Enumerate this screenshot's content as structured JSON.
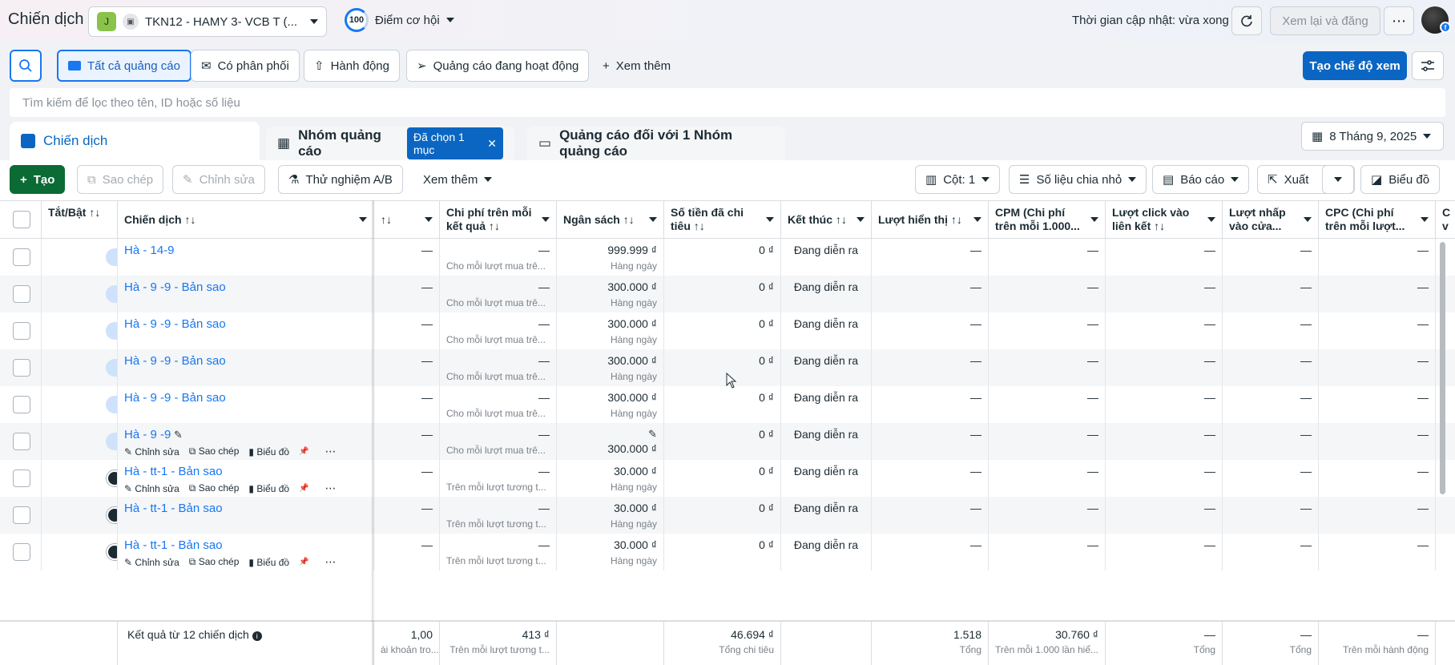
{
  "header": {
    "title": "Chiến dịch",
    "account_badge": "J",
    "account_name": "TKN12 - HAMY 3- VCB T (...",
    "score_value": "100",
    "score_label": "Điểm cơ hội",
    "update_text": "Thời gian cập nhật: vừa xong",
    "review_label": "Xem lại và đăng"
  },
  "filters": {
    "all_ads": "Tất cả quảng cáo",
    "has_delivery": "Có phân phối",
    "actions": "Hành động",
    "active_ads": "Quảng cáo đang hoạt động",
    "see_more": "Xem thêm",
    "create_view": "Tạo chế độ xem"
  },
  "search": {
    "placeholder": "Tìm kiếm để lọc theo tên, ID hoặc số liệu"
  },
  "tabs": {
    "campaigns": "Chiến dịch",
    "adsets": "Nhóm quảng cáo",
    "selected_chip": "Đã chọn 1 mục",
    "ads": "Quảng cáo đối với 1 Nhóm quảng cáo",
    "date": "8 Tháng 9, 2025"
  },
  "toolbar": {
    "create": "Tạo",
    "duplicate": "Sao chép",
    "edit": "Chỉnh sửa",
    "ab_test": "Thử nghiệm A/B",
    "see_more": "Xem thêm",
    "columns": "Cột: 1",
    "breakdown": "Số liệu chia nhỏ",
    "reports": "Báo cáo",
    "export": "Xuất",
    "charts": "Biểu đồ"
  },
  "columns": {
    "toggle": "Tắt/Bật ↑↓",
    "campaign": "Chiến dịch ↑↓",
    "results": "↑↓",
    "cost_per_result": "Chi phí trên mỗi kết quả ↑↓",
    "budget": "Ngân sách ↑↓",
    "amount_spent": "Số tiền đã chi tiêu ↑↓",
    "ends": "Kết thúc ↑↓",
    "impressions": "Lượt hiển thị ↑↓",
    "cpm": "CPM (Chi phí trên mỗi 1.000...",
    "link_clicks": "Lượt click vào liên kết ↑↓",
    "shop_clicks": "Lượt nhấp vào cửa...",
    "cpc": "CPC (Chi phí trên mỗi lượt...",
    "extra": "C v"
  },
  "row_actions": {
    "edit": "Chỉnh sửa",
    "duplicate": "Sao chép",
    "chart": "Biểu đồ"
  },
  "rows": [
    {
      "name": "Hà - 14-9",
      "on": true,
      "results": "—",
      "cpr": "—",
      "cpr_sub": "Cho mỗi lượt mua trê...",
      "budget": "999.999 ₫",
      "budget_sub": "Hàng ngày",
      "spent": "0 ₫",
      "ends": "Đang diễn ra",
      "dash": "—"
    },
    {
      "name": "Hà - 9 -9 - Bản sao",
      "on": true,
      "results": "—",
      "cpr": "—",
      "cpr_sub": "Cho mỗi lượt mua trê...",
      "budget": "300.000 ₫",
      "budget_sub": "Hàng ngày",
      "spent": "0 ₫",
      "ends": "Đang diễn ra",
      "dash": "—"
    },
    {
      "name": "Hà - 9 -9 - Bản sao",
      "on": true,
      "results": "—",
      "cpr": "—",
      "cpr_sub": "Cho mỗi lượt mua trê...",
      "budget": "300.000 ₫",
      "budget_sub": "Hàng ngày",
      "spent": "0 ₫",
      "ends": "Đang diễn ra",
      "dash": "—"
    },
    {
      "name": "Hà - 9 -9 - Bản sao",
      "on": true,
      "results": "—",
      "cpr": "—",
      "cpr_sub": "Cho mỗi lượt mua trê...",
      "budget": "300.000 ₫",
      "budget_sub": "Hàng ngày",
      "spent": "0 ₫",
      "ends": "Đang diễn ra",
      "dash": "—"
    },
    {
      "name": "Hà - 9 -9 - Bản sao",
      "on": true,
      "results": "—",
      "cpr": "—",
      "cpr_sub": "Cho mỗi lượt mua trê...",
      "budget": "300.000 ₫",
      "budget_sub": "Hàng ngày",
      "spent": "0 ₫",
      "ends": "Đang diễn ra",
      "dash": "—"
    },
    {
      "name": "Hà - 9 -9",
      "on": true,
      "results": "—",
      "cpr": "—",
      "cpr_sub": "Cho mỗi lượt mua trê...",
      "budget": "300.000 ₫",
      "budget_sub": "",
      "spent": "0 ₫",
      "ends": "Đang diễn ra",
      "dash": "—",
      "actions": true,
      "edit_icon": true
    },
    {
      "name": "Hà - tt-1 - Bản sao",
      "on": false,
      "results": "—",
      "cpr": "—",
      "cpr_sub": "Trên mỗi lượt tương t...",
      "budget": "30.000 ₫",
      "budget_sub": "Hàng ngày",
      "spent": "0 ₫",
      "ends": "Đang diễn ra",
      "dash": "—",
      "actions": true
    },
    {
      "name": "Hà - tt-1 - Bản sao",
      "on": false,
      "results": "—",
      "cpr": "—",
      "cpr_sub": "Trên mỗi lượt tương t...",
      "budget": "30.000 ₫",
      "budget_sub": "Hàng ngày",
      "spent": "0 ₫",
      "ends": "Đang diễn ra",
      "dash": "—"
    },
    {
      "name": "Hà - tt-1 - Bản sao",
      "on": false,
      "results": "—",
      "cpr": "—",
      "cpr_sub": "Trên mỗi lượt tương t...",
      "budget": "30.000 ₫",
      "budget_sub": "Hàng ngày",
      "spent": "0 ₫",
      "ends": "Đang diễn ra",
      "dash": "—",
      "actions": true
    }
  ],
  "footer": {
    "label": "Kết quả từ 12 chiến dịch",
    "results": "1,00",
    "results_sub": "ài khoản tro...",
    "cpr": "413 ₫",
    "cpr_sub": "Trên mỗi lượt tương t...",
    "spent": "46.694 ₫",
    "spent_sub": "Tổng chi tiêu",
    "impressions": "1.518",
    "impressions_sub": "Tổng",
    "cpm": "30.760 ₫",
    "cpm_sub": "Trên mỗi 1.000 lần hiể...",
    "link_clicks": "—",
    "link_clicks_sub": "Tổng",
    "shop_clicks": "—",
    "shop_clicks_sub": "Tổng",
    "cpc": "—",
    "cpc_sub": "Trên mỗi hành động"
  },
  "colors": {
    "primary": "#0a66c2",
    "link": "#1877f2",
    "create": "#0b6b35"
  }
}
